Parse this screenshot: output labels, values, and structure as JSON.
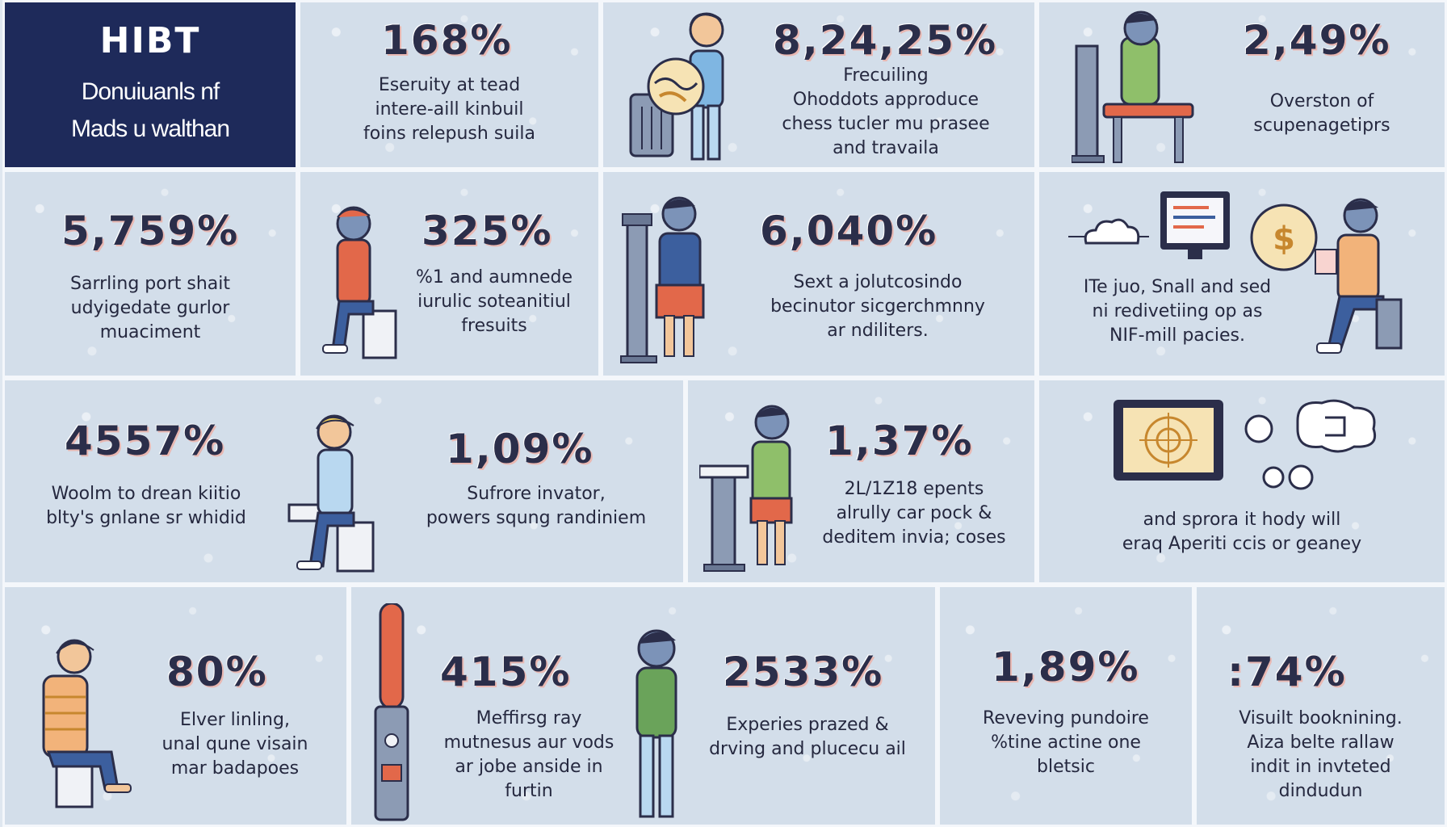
{
  "title": {
    "main": "HIBT",
    "lines": [
      "Donuiuanls nf",
      "Mads u walthan"
    ]
  },
  "panels": [
    {
      "stat": "168%",
      "lines": [
        "Eseruity at tead",
        "intere-aill kinbuil",
        "foins relepush suila"
      ]
    },
    {
      "stat": "8,24,25%",
      "lines": [
        "Frecuiling",
        "Ohoddots approduce",
        "chess tucler mu prasee",
        "and travaila"
      ]
    },
    {
      "stat": "2,49%",
      "lines": [
        "Overston of",
        "scupenagetiprs"
      ]
    },
    {
      "stat": "5,759%",
      "lines": [
        "Sarrling port shait",
        "udyigedate gurlor",
        "muaciment"
      ]
    },
    {
      "stat": "325%",
      "lines": [
        "%1 and aumnede",
        "iurulic soteanitiul",
        "fresuits"
      ]
    },
    {
      "stat": "6,040%",
      "lines": [
        "Sext a jolutcosindo",
        "becinutor sicgerchmnny",
        "ar ndiliters."
      ]
    },
    {
      "stat": "",
      "lines": [
        "ITe juo, Snall and sed",
        "ni redivetiing op as",
        "NIF-mill pacies."
      ]
    },
    {
      "stat": "4557%",
      "lines": [
        "Woolm to drean kiitio",
        "blty's gnlane sr whidid"
      ]
    },
    {
      "stat": "1,09%",
      "lines": [
        "Sufrore invator,",
        "powers squng randiniem"
      ]
    },
    {
      "stat": "1,37%",
      "lines": [
        "2L/1Z18 epents",
        "alrully car pock &",
        "deditem invia; coses"
      ]
    },
    {
      "stat": "",
      "lines": [
        "and sprora it hody will",
        "eraq Aperiti ccis or geaney"
      ]
    },
    {
      "stat": "80%",
      "lines": [
        "Elver linling,",
        "unal qune visain",
        "mar badapoes"
      ]
    },
    {
      "stat": "415%",
      "lines": [
        "Meffirsg ray",
        "mutnesus aur vods",
        "ar jobe anside in",
        "furtin"
      ]
    },
    {
      "stat": "2533%",
      "lines": [
        "Experies prazed &",
        "drving and plucecu ail"
      ]
    },
    {
      "stat": "1,89%",
      "lines": [
        "Reveving pundoire",
        "%tine actine one",
        "bletsic"
      ]
    },
    {
      "stat": ":74%",
      "lines": [
        "Visuilt booknining.",
        "Aiza belte rallaw",
        "indit in invteted",
        "dindudun"
      ]
    }
  ],
  "colors": {
    "title_bg": "#1e2a5a",
    "panel_bg": "#d3deea",
    "border": "#f4f7fb",
    "text": "#2b2e4a",
    "stat_shadow": "#e9b8b2",
    "accent_orange": "#e2684a",
    "accent_blue": "#3c5f9e",
    "accent_green": "#6aa35a"
  },
  "icons": [
    "person-with-globe-icon",
    "person-at-lectern-icon",
    "seated-person-icon",
    "person-at-machine-icon",
    "laptop-user-icon",
    "cloud-icon",
    "monitor-icon",
    "coin-icon",
    "target-screen-icon",
    "thought-bubble-icon",
    "signal-tower-icon"
  ]
}
